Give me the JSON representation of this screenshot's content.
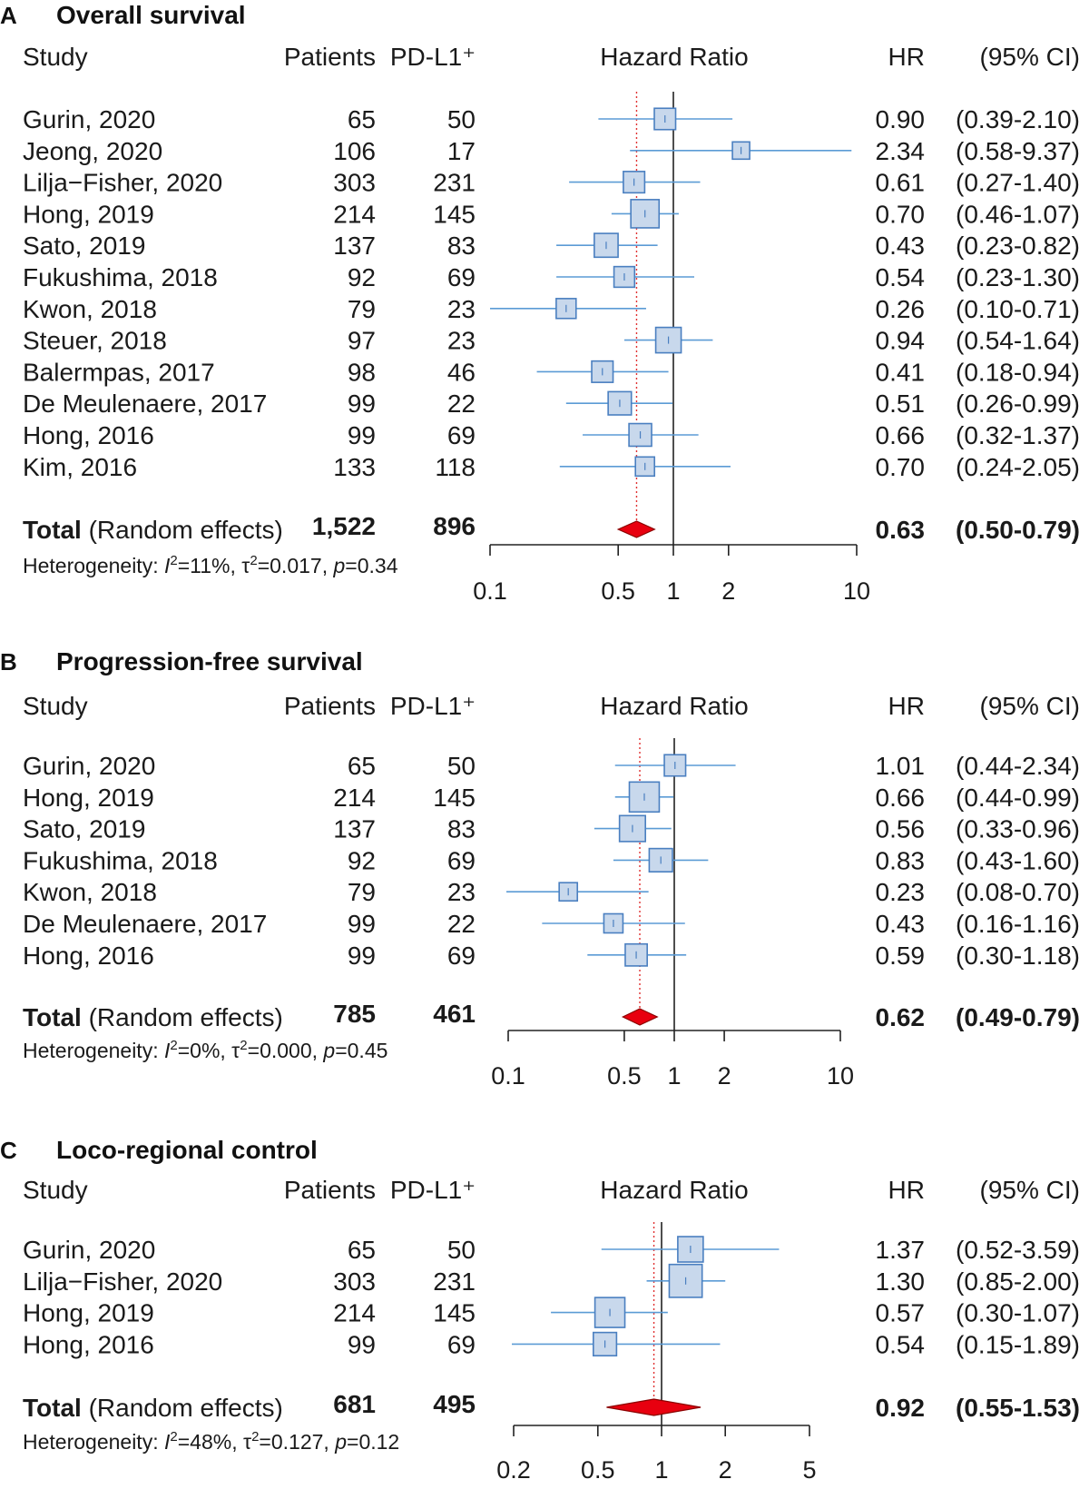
{
  "headers": {
    "study": "Study",
    "patients": "Patients",
    "pdl1": "PD-L1⁺",
    "hazard_ratio": "Hazard Ratio",
    "hr": "HR",
    "ci": "(95% CI)"
  },
  "total_prefix": "Total",
  "total_suffix": " (Random effects)",
  "het_label": "Heterogeneity: ",
  "colors": {
    "ci_line": "#5b9bd5",
    "box_fill": "#c8d8ec",
    "box_stroke": "#4a7fc0",
    "diamond_fill": "#e8000f",
    "diamond_stroke": "#8b0000",
    "ref_line": "#e03030",
    "axis": "#222222"
  },
  "chart_data": [
    {
      "type": "forest",
      "letter": "A",
      "title": "Overall survival",
      "xlabel": "Hazard Ratio",
      "scale": "log",
      "xlim": [
        0.1,
        10
      ],
      "ticks": [
        0.1,
        0.5,
        1,
        2,
        10
      ],
      "tick_labels": [
        "0.1",
        "0.5",
        "1",
        "2",
        "10"
      ],
      "studies": [
        {
          "study": "Gurin, 2020",
          "patients": "65",
          "pdl1": "50",
          "hr": 0.9,
          "lo": 0.39,
          "hi": 2.1,
          "hr_text": "0.90",
          "ci_text": "(0.39-2.10)",
          "weight": 9
        },
        {
          "study": "Jeong, 2020",
          "patients": "106",
          "pdl1": "17",
          "hr": 2.34,
          "lo": 0.58,
          "hi": 9.37,
          "hr_text": "2.34",
          "ci_text": "(0.58-9.37)",
          "weight": 4
        },
        {
          "study": "Lilja−Fisher, 2020",
          "patients": "303",
          "pdl1": "231",
          "hr": 0.61,
          "lo": 0.27,
          "hi": 1.4,
          "hr_text": "0.61",
          "ci_text": "(0.27-1.40)",
          "weight": 9
        },
        {
          "study": "Hong, 2019",
          "patients": "214",
          "pdl1": "145",
          "hr": 0.7,
          "lo": 0.46,
          "hi": 1.07,
          "hr_text": "0.70",
          "ci_text": "(0.46-1.07)",
          "weight": 22
        },
        {
          "study": "Sato, 2019",
          "patients": "137",
          "pdl1": "83",
          "hr": 0.43,
          "lo": 0.23,
          "hi": 0.82,
          "hr_text": "0.43",
          "ci_text": "(0.23-0.82)",
          "weight": 13
        },
        {
          "study": "Fukushima, 2018",
          "patients": "92",
          "pdl1": "69",
          "hr": 0.54,
          "lo": 0.23,
          "hi": 1.3,
          "hr_text": "0.54",
          "ci_text": "(0.23-1.30)",
          "weight": 8
        },
        {
          "study": "Kwon, 2018",
          "patients": "79",
          "pdl1": "23",
          "hr": 0.26,
          "lo": 0.1,
          "hi": 0.71,
          "hr_text": "0.26",
          "ci_text": "(0.10-0.71)",
          "weight": 7
        },
        {
          "study": "Steuer, 2018",
          "patients": "97",
          "pdl1": "23",
          "hr": 0.94,
          "lo": 0.54,
          "hi": 1.64,
          "hr_text": "0.94",
          "ci_text": "(0.54-1.64)",
          "weight": 16
        },
        {
          "study": "Balermpas, 2017",
          "patients": "98",
          "pdl1": "46",
          "hr": 0.41,
          "lo": 0.18,
          "hi": 0.94,
          "hr_text": "0.41",
          "ci_text": "(0.18-0.94)",
          "weight": 9
        },
        {
          "study": "De Meulenaere, 2017",
          "patients": "99",
          "pdl1": "22",
          "hr": 0.51,
          "lo": 0.26,
          "hi": 0.99,
          "hr_text": "0.51",
          "ci_text": "(0.26-0.99)",
          "weight": 12
        },
        {
          "study": "Hong, 2016",
          "patients": "99",
          "pdl1": "69",
          "hr": 0.66,
          "lo": 0.32,
          "hi": 1.37,
          "hr_text": "0.66",
          "ci_text": "(0.32-1.37)",
          "weight": 11
        },
        {
          "study": "Kim, 2016",
          "patients": "133",
          "pdl1": "118",
          "hr": 0.7,
          "lo": 0.24,
          "hi": 2.05,
          "hr_text": "0.70",
          "ci_text": "(0.24-2.05)",
          "weight": 6
        }
      ],
      "total": {
        "patients": "1,522",
        "pdl1": "896",
        "hr": 0.63,
        "lo": 0.5,
        "hi": 0.79,
        "hr_text": "0.63",
        "ci_text": "(0.50-0.79)"
      },
      "heterogeneity": {
        "i2": "11%",
        "tau2": "0.017",
        "p": "0.34"
      }
    },
    {
      "type": "forest",
      "letter": "B",
      "title": "Progression-free survival",
      "xlabel": "Hazard Ratio",
      "scale": "log",
      "xlim": [
        0.1,
        10
      ],
      "ticks": [
        0.1,
        0.5,
        1,
        2,
        10
      ],
      "tick_labels": [
        "0.1",
        "0.5",
        "1",
        "2",
        "10"
      ],
      "studies": [
        {
          "study": "Gurin, 2020",
          "patients": "65",
          "pdl1": "50",
          "hr": 1.01,
          "lo": 0.44,
          "hi": 2.34,
          "hr_text": "1.01",
          "ci_text": "(0.44-2.34)",
          "weight": 9
        },
        {
          "study": "Hong, 2019",
          "patients": "214",
          "pdl1": "145",
          "hr": 0.66,
          "lo": 0.44,
          "hi": 0.99,
          "hr_text": "0.66",
          "ci_text": "(0.44-0.99)",
          "weight": 26
        },
        {
          "study": "Sato, 2019",
          "patients": "137",
          "pdl1": "83",
          "hr": 0.56,
          "lo": 0.33,
          "hi": 0.96,
          "hr_text": "0.56",
          "ci_text": "(0.33-0.96)",
          "weight": 17
        },
        {
          "study": "Fukushima, 2018",
          "patients": "92",
          "pdl1": "69",
          "hr": 0.83,
          "lo": 0.43,
          "hi": 1.6,
          "hr_text": "0.83",
          "ci_text": "(0.43-1.60)",
          "weight": 12
        },
        {
          "study": "Kwon, 2018",
          "patients": "79",
          "pdl1": "23",
          "hr": 0.23,
          "lo": 0.08,
          "hi": 0.7,
          "hr_text": "0.23",
          "ci_text": "(0.08-0.70)",
          "weight": 5
        },
        {
          "study": "De Meulenaere, 2017",
          "patients": "99",
          "pdl1": "22",
          "hr": 0.43,
          "lo": 0.16,
          "hi": 1.16,
          "hr_text": "0.43",
          "ci_text": "(0.16-1.16)",
          "weight": 6
        },
        {
          "study": "Hong, 2016",
          "patients": "99",
          "pdl1": "69",
          "hr": 0.59,
          "lo": 0.3,
          "hi": 1.18,
          "hr_text": "0.59",
          "ci_text": "(0.30-1.18)",
          "weight": 10
        }
      ],
      "total": {
        "patients": "785",
        "pdl1": "461",
        "hr": 0.62,
        "lo": 0.49,
        "hi": 0.79,
        "hr_text": "0.62",
        "ci_text": "(0.49-0.79)"
      },
      "heterogeneity": {
        "i2": "0%",
        "tau2": "0.000",
        "p": "0.45"
      }
    },
    {
      "type": "forest",
      "letter": "C",
      "title": "Loco-regional control",
      "xlabel": "Hazard Ratio",
      "scale": "log",
      "xlim": [
        0.2,
        5
      ],
      "ticks": [
        0.2,
        0.5,
        1,
        2,
        5
      ],
      "tick_labels": [
        "0.2",
        "0.5",
        "1",
        "2",
        "5"
      ],
      "studies": [
        {
          "study": "Gurin, 2020",
          "patients": "65",
          "pdl1": "50",
          "hr": 1.37,
          "lo": 0.52,
          "hi": 3.59,
          "hr_text": "1.37",
          "ci_text": "(0.52-3.59)",
          "weight": 16
        },
        {
          "study": "Lilja−Fisher, 2020",
          "patients": "303",
          "pdl1": "231",
          "hr": 1.3,
          "lo": 0.85,
          "hi": 2.0,
          "hr_text": "1.30",
          "ci_text": "(0.85-2.00)",
          "weight": 34
        },
        {
          "study": "Hong, 2019",
          "patients": "214",
          "pdl1": "145",
          "hr": 0.57,
          "lo": 0.3,
          "hi": 1.07,
          "hr_text": "0.57",
          "ci_text": "(0.30-1.07)",
          "weight": 26
        },
        {
          "study": "Hong, 2016",
          "patients": "99",
          "pdl1": "69",
          "hr": 0.54,
          "lo": 0.15,
          "hi": 1.89,
          "hr_text": "0.54",
          "ci_text": "(0.15-1.89)",
          "weight": 12
        }
      ],
      "total": {
        "patients": "681",
        "pdl1": "495",
        "hr": 0.92,
        "lo": 0.55,
        "hi": 1.53,
        "hr_text": "0.92",
        "ci_text": "(0.55-1.53)"
      },
      "heterogeneity": {
        "i2": "48%",
        "tau2": "0.127",
        "p": "0.12"
      }
    }
  ]
}
